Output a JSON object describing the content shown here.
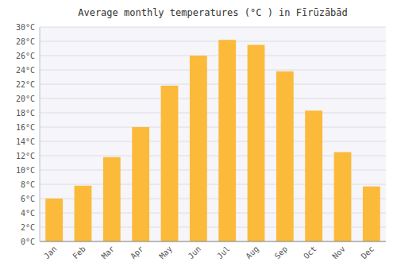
{
  "chart_data": {
    "type": "bar",
    "title": "Average monthly temperatures (°C ) in Fīrūzābād",
    "categories": [
      "Jan",
      "Feb",
      "Mar",
      "Apr",
      "May",
      "Jun",
      "Jul",
      "Aug",
      "Sep",
      "Oct",
      "Nov",
      "Dec"
    ],
    "values": [
      6.0,
      7.8,
      11.8,
      16.0,
      21.8,
      26.0,
      28.2,
      27.5,
      23.8,
      18.3,
      12.5,
      7.7
    ],
    "color": "#FBBA3A",
    "ylim": [
      0,
      30
    ],
    "yticks": [
      {
        "value": 0,
        "label": "0°C"
      },
      {
        "value": 2,
        "label": "2°C"
      },
      {
        "value": 4,
        "label": "4°C"
      },
      {
        "value": 6,
        "label": "6°C"
      },
      {
        "value": 8,
        "label": "8°C"
      },
      {
        "value": 10,
        "label": "10°C"
      },
      {
        "value": 12,
        "label": "12°C"
      },
      {
        "value": 14,
        "label": "14°C"
      },
      {
        "value": 16,
        "label": "16°C"
      },
      {
        "value": 18,
        "label": "18°C"
      },
      {
        "value": 20,
        "label": "20°C"
      },
      {
        "value": 22,
        "label": "22°C"
      },
      {
        "value": 24,
        "label": "24°C"
      },
      {
        "value": 26,
        "label": "26°C"
      },
      {
        "value": 28,
        "label": "28°C"
      },
      {
        "value": 30,
        "label": "30°C"
      }
    ],
    "grid": true
  }
}
